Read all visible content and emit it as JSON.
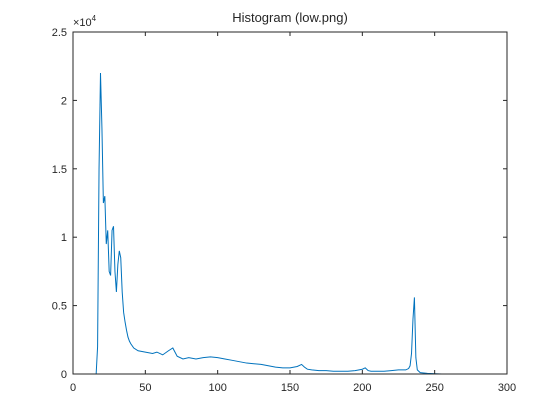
{
  "chart_data": {
    "type": "line",
    "title": "Histogram (low.png)",
    "xlabel": "",
    "ylabel": "",
    "xlim": [
      0,
      300
    ],
    "ylim": [
      0,
      25000
    ],
    "y_exponent_label": "×10",
    "y_exponent_power": "4",
    "xticks": [
      0,
      50,
      100,
      150,
      200,
      250,
      300
    ],
    "xtick_labels": [
      "0",
      "50",
      "100",
      "150",
      "200",
      "250",
      "300"
    ],
    "yticks": [
      0,
      5000,
      10000,
      15000,
      20000,
      25000
    ],
    "ytick_labels": [
      "0",
      "0.5",
      "1",
      "1.5",
      "2",
      "2.5"
    ],
    "grid": false,
    "line_color": "#0072bd",
    "series": [
      {
        "x": [
          0,
          16,
          17,
          18,
          19,
          20,
          21,
          22,
          23,
          24,
          25,
          26,
          27,
          28,
          29,
          30,
          31,
          32,
          33,
          34,
          35,
          36,
          37,
          38,
          39,
          40,
          42,
          45,
          50,
          55,
          58,
          62,
          66,
          69,
          72,
          76,
          80,
          85,
          90,
          95,
          100,
          105,
          110,
          115,
          120,
          125,
          130,
          135,
          140,
          145,
          150,
          155,
          158,
          160,
          162,
          165,
          170,
          175,
          180,
          185,
          190,
          195,
          200,
          202,
          204,
          206,
          210,
          215,
          220,
          225,
          230,
          232,
          233,
          234,
          235,
          236,
          237,
          238,
          240,
          245,
          255
        ],
        "y": [
          0,
          0,
          2000,
          15000,
          22000,
          18000,
          12500,
          13000,
          9500,
          10500,
          7500,
          7200,
          10500,
          10800,
          7500,
          6000,
          8000,
          9000,
          8500,
          6000,
          4500,
          3800,
          3200,
          2700,
          2400,
          2200,
          1900,
          1700,
          1600,
          1500,
          1600,
          1400,
          1700,
          1900,
          1300,
          1100,
          1200,
          1100,
          1200,
          1250,
          1200,
          1100,
          1000,
          900,
          800,
          750,
          700,
          600,
          500,
          450,
          450,
          550,
          700,
          500,
          350,
          300,
          250,
          250,
          200,
          200,
          200,
          250,
          350,
          450,
          250,
          200,
          200,
          200,
          250,
          300,
          300,
          400,
          600,
          1500,
          4000,
          5600,
          1200,
          300,
          100,
          50,
          0
        ]
      }
    ]
  }
}
